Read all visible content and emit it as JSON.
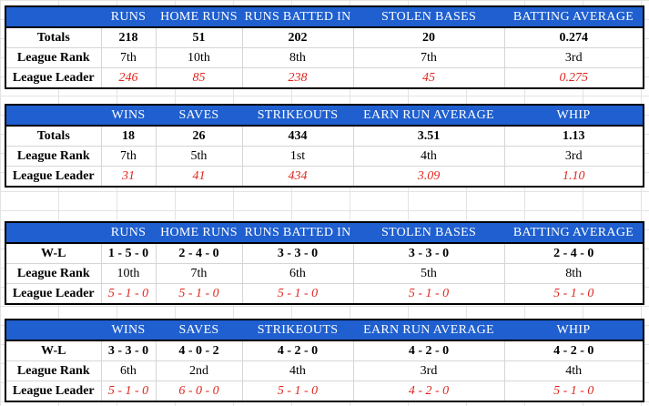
{
  "tables": [
    {
      "id": "batting-totals",
      "headers": [
        "RUNS",
        "HOME RUNS",
        "RUNS BATTED IN",
        "STOLEN BASES",
        "BATTING AVERAGE"
      ],
      "rows": [
        {
          "label": "Totals",
          "values": [
            "218",
            "51",
            "202",
            "20",
            "0.274"
          ]
        },
        {
          "label": "League Rank",
          "values": [
            "7th",
            "10th",
            "8th",
            "7th",
            "3rd"
          ]
        },
        {
          "label": "League Leader",
          "values": [
            "246",
            "85",
            "238",
            "45",
            "0.275"
          ]
        }
      ]
    },
    {
      "id": "pitching-totals",
      "headers": [
        "WINS",
        "SAVES",
        "STRIKEOUTS",
        "EARN RUN AVERAGE",
        "WHIP"
      ],
      "rows": [
        {
          "label": "Totals",
          "values": [
            "18",
            "26",
            "434",
            "3.51",
            "1.13"
          ]
        },
        {
          "label": "League Rank",
          "values": [
            "7th",
            "5th",
            "1st",
            "4th",
            "3rd"
          ]
        },
        {
          "label": "League Leader",
          "values": [
            "31",
            "41",
            "434",
            "3.09",
            "1.10"
          ]
        }
      ]
    },
    {
      "id": "batting-record",
      "headers": [
        "RUNS",
        "HOME RUNS",
        "RUNS BATTED IN",
        "STOLEN BASES",
        "BATTING AVERAGE"
      ],
      "rows": [
        {
          "label": "W-L",
          "values": [
            "1 - 5 - 0",
            "2 - 4 - 0",
            "3 - 3 - 0",
            "3 - 3 - 0",
            "2 - 4 - 0"
          ]
        },
        {
          "label": "League Rank",
          "values": [
            "10th",
            "7th",
            "6th",
            "5th",
            "8th"
          ]
        },
        {
          "label": "League Leader",
          "values": [
            "5 - 1 - 0",
            "5 - 1 - 0",
            "5 - 1 - 0",
            "5 - 1 - 0",
            "5 - 1 - 0"
          ]
        }
      ]
    },
    {
      "id": "pitching-record",
      "headers": [
        "WINS",
        "SAVES",
        "STRIKEOUTS",
        "EARN RUN AVERAGE",
        "WHIP"
      ],
      "rows": [
        {
          "label": "W-L",
          "values": [
            "3 - 3 - 0",
            "4 - 0 - 2",
            "4 - 2 - 0",
            "4 - 2 - 0",
            "4 - 2 - 0"
          ]
        },
        {
          "label": "League Rank",
          "values": [
            "6th",
            "2nd",
            "4th",
            "3rd",
            "4th"
          ]
        },
        {
          "label": "League Leader",
          "values": [
            "5 - 1 - 0",
            "6 - 0 - 0",
            "5 - 1 - 0",
            "4 - 2 - 0",
            "5 - 1 - 0"
          ]
        }
      ]
    }
  ],
  "colors": {
    "header_bg": "#1f5fcf",
    "header_text": "#ffffff",
    "leader_text": "#e0261e",
    "grid_line": "#e3e3e3"
  }
}
